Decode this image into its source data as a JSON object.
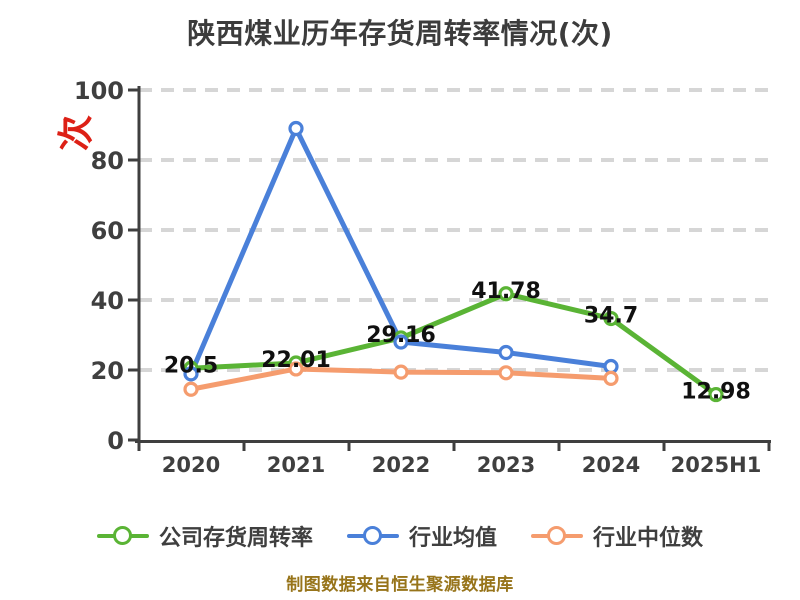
{
  "title": "陕西煤业历年存货周转率情况(次)",
  "y_axis_unit": "次",
  "footer": "制图数据来自恒生聚源数据库",
  "colors": {
    "company_series": "#5ab435",
    "industry_mean_series": "#4a80d9",
    "industry_median_series": "#f59c6e",
    "axis": "#3f3f3f",
    "grid": "#d6d6d6",
    "tick_label": "#3f3f3f",
    "data_label": "#101010",
    "title": "#3c3c3c",
    "footer": "#97741a",
    "unit_label_red": "#dd2016",
    "marker_fill": "#ffffff"
  },
  "legend": {
    "items": [
      {
        "label": "公司存货周转率",
        "color": "#5ab435"
      },
      {
        "label": "行业均值",
        "color": "#4a80d9"
      },
      {
        "label": "行业中位数",
        "color": "#f59c6e"
      }
    ]
  },
  "chart_data": {
    "type": "line",
    "title": "陕西煤业历年存货周转率情况(次)",
    "xlabel": "",
    "ylabel": "次",
    "categories": [
      "2020",
      "2021",
      "2022",
      "2023",
      "2024",
      "2025H1"
    ],
    "series": [
      {
        "name": "公司存货周转率",
        "color": "#5ab435",
        "values": [
          20.5,
          22.01,
          29.16,
          41.78,
          34.7,
          12.98
        ],
        "point_labels": [
          "20.5",
          "22.01",
          "29.16",
          "41.78",
          "34.7",
          "12.98"
        ]
      },
      {
        "name": "行业均值",
        "color": "#4a80d9",
        "values": [
          18.9,
          89,
          28,
          25,
          21,
          null
        ],
        "point_labels": null
      },
      {
        "name": "行业中位数",
        "color": "#f59c6e",
        "values": [
          14.5,
          20.3,
          19.4,
          19.2,
          17.6,
          null
        ],
        "point_labels": null
      }
    ],
    "ylim": [
      0,
      100
    ],
    "yticks": [
      0,
      20,
      40,
      60,
      80,
      100
    ],
    "grid": "horizontal-dashed",
    "legend_position": "bottom",
    "notes": "行业均值/行业中位数 values estimated from gridlines; lines end at 2024"
  }
}
